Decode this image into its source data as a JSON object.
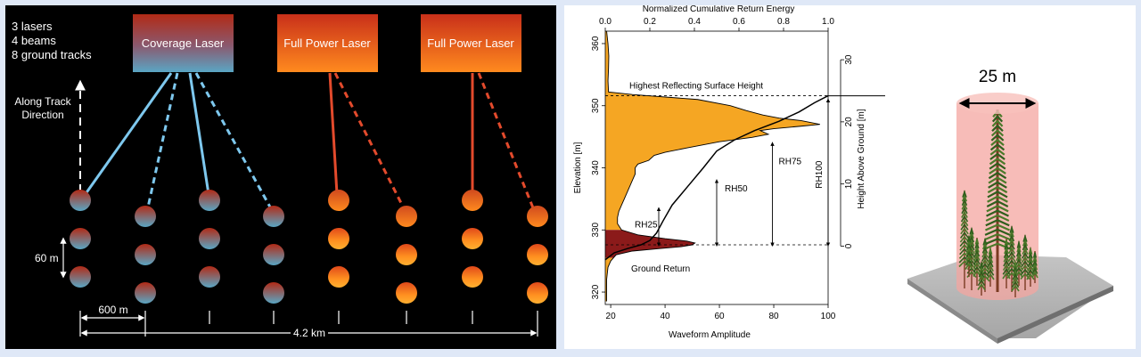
{
  "panel_a": {
    "info_lines": [
      "3 lasers",
      "4 beams",
      "8 ground tracks"
    ],
    "along_track_lines": [
      "Along Track",
      "Direction"
    ],
    "lasers": [
      "Coverage Laser",
      "Full Power Laser",
      "Full Power Laser"
    ],
    "spacing_label": "60 m",
    "track_spacing_label": "600 m",
    "swath_label": "4.2 km",
    "colors": {
      "coverage_top": "#b22a16",
      "coverage_bottom": "#5aa6c4",
      "full_top": "#d8421c",
      "full_bottom": "#ff8a1e",
      "coverage_beam": "#7ec8ee",
      "full_beam": "#e34a2c"
    }
  },
  "panel_b": {
    "chart_data": {
      "type": "line",
      "top_axis": {
        "label": "Normalized Cumulative Return Energy",
        "ticks": [
          "0.0",
          "0.2",
          "0.4",
          "0.6",
          "0.8",
          "1.0"
        ],
        "range": [
          0,
          1
        ]
      },
      "bottom_axis": {
        "label": "Waveform Amplitude",
        "ticks": [
          "20",
          "40",
          "60",
          "80",
          "100"
        ],
        "range": [
          18,
          100
        ]
      },
      "left_axis": {
        "label": "Elevation [m]",
        "ticks": [
          "320",
          "330",
          "340",
          "350",
          "360"
        ],
        "range": [
          318,
          362
        ]
      },
      "right_axis": {
        "label": "Height Above Ground [m]",
        "ticks": [
          "0",
          "10",
          "20",
          "30"
        ],
        "range": [
          -9.4,
          34.6
        ]
      },
      "annotations": [
        "Highest Reflecting Surface Height",
        "Ground Return",
        "RH25",
        "RH50",
        "RH75",
        "RH100"
      ],
      "rh_heights_m": {
        "RH25": 6.5,
        "RH50": 11,
        "RH75": 17,
        "RH100": 24
      },
      "ground_elevation": 327.6,
      "top_elevation": 351.6,
      "colors": {
        "canopy_fill": "#f5a623",
        "ground_fill": "#8b1a1a"
      }
    }
  },
  "panel_c": {
    "diameter_label": "25 m",
    "colors": {
      "footprint": "#f4a6a0",
      "platform": "#b5b5b5"
    }
  }
}
